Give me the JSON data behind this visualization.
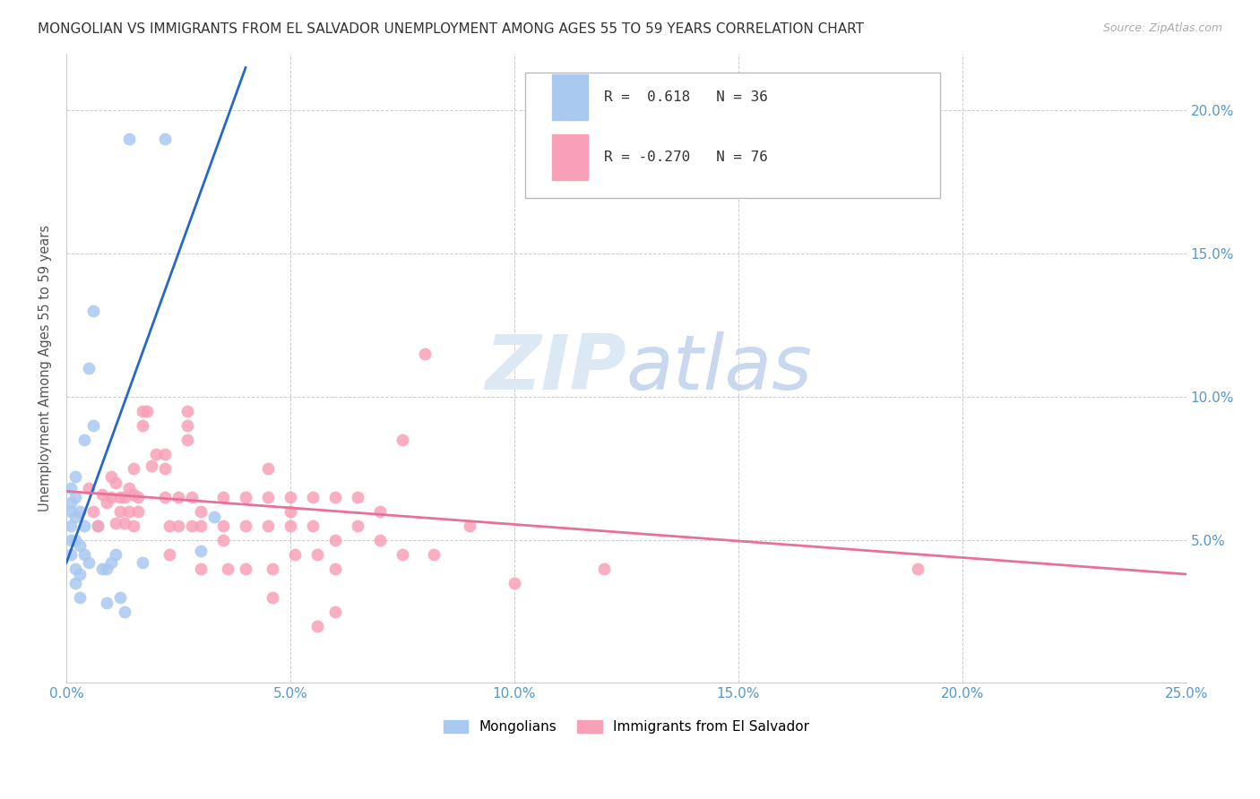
{
  "title": "MONGOLIAN VS IMMIGRANTS FROM EL SALVADOR UNEMPLOYMENT AMONG AGES 55 TO 59 YEARS CORRELATION CHART",
  "source": "Source: ZipAtlas.com",
  "ylabel": "Unemployment Among Ages 55 to 59 years",
  "xlim": [
    0.0,
    0.25
  ],
  "ylim": [
    0.0,
    0.22
  ],
  "xticks": [
    0.0,
    0.05,
    0.1,
    0.15,
    0.2,
    0.25
  ],
  "yticks_left": [
    0.0,
    0.05,
    0.1,
    0.15,
    0.2
  ],
  "yticks_right": [
    0.05,
    0.1,
    0.15,
    0.2
  ],
  "ytick_right_labels": [
    "5.0%",
    "10.0%",
    "15.0%",
    "20.0%"
  ],
  "xtick_labels": [
    "0.0%",
    "5.0%",
    "10.0%",
    "15.0%",
    "20.0%",
    "25.0%"
  ],
  "legend_mongolian_R": "0.618",
  "legend_mongolian_N": "36",
  "legend_salvador_R": "-0.270",
  "legend_salvador_N": "76",
  "mongolian_color": "#a8c8f0",
  "salvador_color": "#f8a0b8",
  "mongolian_line_color": "#2468cc",
  "salvador_line_color": "#e8709a",
  "mongolian_scatter": [
    [
      0.001,
      0.063
    ],
    [
      0.001,
      0.06
    ],
    [
      0.001,
      0.055
    ],
    [
      0.001,
      0.068
    ],
    [
      0.001,
      0.05
    ],
    [
      0.001,
      0.045
    ],
    [
      0.002,
      0.072
    ],
    [
      0.002,
      0.065
    ],
    [
      0.002,
      0.058
    ],
    [
      0.002,
      0.05
    ],
    [
      0.002,
      0.04
    ],
    [
      0.002,
      0.035
    ],
    [
      0.003,
      0.06
    ],
    [
      0.003,
      0.048
    ],
    [
      0.003,
      0.038
    ],
    [
      0.003,
      0.03
    ],
    [
      0.004,
      0.085
    ],
    [
      0.004,
      0.055
    ],
    [
      0.004,
      0.045
    ],
    [
      0.005,
      0.11
    ],
    [
      0.005,
      0.042
    ],
    [
      0.006,
      0.13
    ],
    [
      0.006,
      0.09
    ],
    [
      0.007,
      0.055
    ],
    [
      0.008,
      0.04
    ],
    [
      0.009,
      0.04
    ],
    [
      0.009,
      0.028
    ],
    [
      0.01,
      0.042
    ],
    [
      0.011,
      0.045
    ],
    [
      0.012,
      0.03
    ],
    [
      0.013,
      0.025
    ],
    [
      0.014,
      0.19
    ],
    [
      0.017,
      0.042
    ],
    [
      0.022,
      0.19
    ],
    [
      0.03,
      0.046
    ],
    [
      0.033,
      0.058
    ]
  ],
  "salvador_scatter": [
    [
      0.005,
      0.068
    ],
    [
      0.006,
      0.06
    ],
    [
      0.007,
      0.055
    ],
    [
      0.008,
      0.066
    ],
    [
      0.009,
      0.063
    ],
    [
      0.01,
      0.072
    ],
    [
      0.01,
      0.065
    ],
    [
      0.011,
      0.056
    ],
    [
      0.011,
      0.07
    ],
    [
      0.012,
      0.065
    ],
    [
      0.012,
      0.06
    ],
    [
      0.013,
      0.056
    ],
    [
      0.013,
      0.065
    ],
    [
      0.014,
      0.068
    ],
    [
      0.014,
      0.06
    ],
    [
      0.015,
      0.066
    ],
    [
      0.015,
      0.075
    ],
    [
      0.015,
      0.055
    ],
    [
      0.016,
      0.065
    ],
    [
      0.016,
      0.06
    ],
    [
      0.017,
      0.095
    ],
    [
      0.017,
      0.09
    ],
    [
      0.018,
      0.095
    ],
    [
      0.019,
      0.076
    ],
    [
      0.02,
      0.08
    ],
    [
      0.022,
      0.08
    ],
    [
      0.022,
      0.075
    ],
    [
      0.022,
      0.065
    ],
    [
      0.023,
      0.055
    ],
    [
      0.023,
      0.045
    ],
    [
      0.025,
      0.065
    ],
    [
      0.025,
      0.055
    ],
    [
      0.027,
      0.095
    ],
    [
      0.027,
      0.09
    ],
    [
      0.027,
      0.085
    ],
    [
      0.028,
      0.065
    ],
    [
      0.028,
      0.055
    ],
    [
      0.03,
      0.06
    ],
    [
      0.03,
      0.055
    ],
    [
      0.03,
      0.04
    ],
    [
      0.035,
      0.065
    ],
    [
      0.035,
      0.055
    ],
    [
      0.035,
      0.05
    ],
    [
      0.036,
      0.04
    ],
    [
      0.04,
      0.065
    ],
    [
      0.04,
      0.055
    ],
    [
      0.04,
      0.04
    ],
    [
      0.045,
      0.075
    ],
    [
      0.045,
      0.065
    ],
    [
      0.045,
      0.055
    ],
    [
      0.046,
      0.04
    ],
    [
      0.046,
      0.03
    ],
    [
      0.05,
      0.065
    ],
    [
      0.05,
      0.06
    ],
    [
      0.05,
      0.055
    ],
    [
      0.051,
      0.045
    ],
    [
      0.055,
      0.065
    ],
    [
      0.055,
      0.055
    ],
    [
      0.056,
      0.045
    ],
    [
      0.056,
      0.02
    ],
    [
      0.06,
      0.065
    ],
    [
      0.06,
      0.05
    ],
    [
      0.06,
      0.04
    ],
    [
      0.06,
      0.025
    ],
    [
      0.065,
      0.065
    ],
    [
      0.065,
      0.055
    ],
    [
      0.07,
      0.06
    ],
    [
      0.07,
      0.05
    ],
    [
      0.075,
      0.085
    ],
    [
      0.075,
      0.045
    ],
    [
      0.08,
      0.115
    ],
    [
      0.082,
      0.045
    ],
    [
      0.09,
      0.055
    ],
    [
      0.1,
      0.035
    ],
    [
      0.12,
      0.04
    ],
    [
      0.19,
      0.04
    ]
  ],
  "mongolian_trendline": [
    [
      0.0,
      0.042
    ],
    [
      0.04,
      0.215
    ]
  ],
  "salvador_trendline": [
    [
      0.0,
      0.067
    ],
    [
      0.25,
      0.038
    ]
  ],
  "watermark_zip": "ZIP",
  "watermark_atlas": "atlas",
  "background_color": "#ffffff",
  "grid_color": "#cccccc"
}
